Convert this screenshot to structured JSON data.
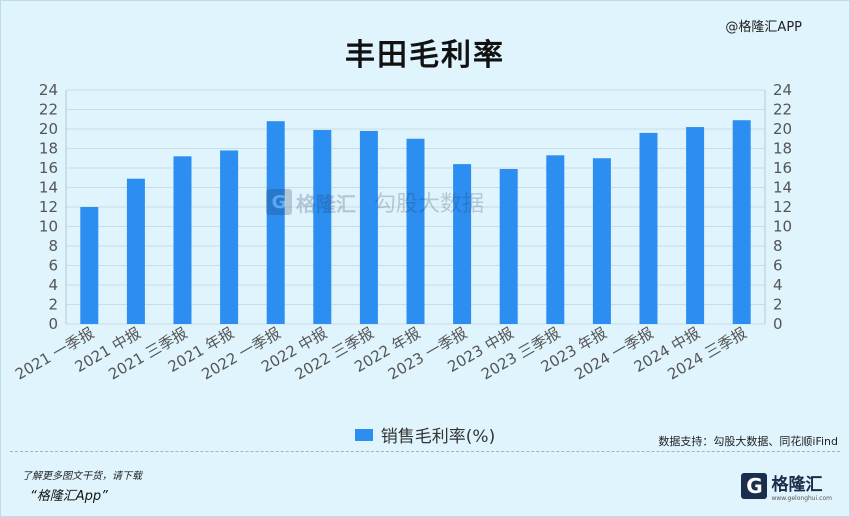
{
  "header": {
    "watermark_text": "@格隆汇APP"
  },
  "chart_data": {
    "type": "bar",
    "title": "丰田毛利率",
    "categories": [
      "2021 一季报",
      "2021 中报",
      "2021 三季报",
      "2021 年报",
      "2022 一季报",
      "2022 中报",
      "2022 三季报",
      "2022 年报",
      "2023 一季报",
      "2023 中报",
      "2023 三季报",
      "2023 年报",
      "2024 一季报",
      "2024 中报",
      "2024 三季报"
    ],
    "series": [
      {
        "name": "销售毛利率(%)",
        "values": [
          12.0,
          14.9,
          17.2,
          17.8,
          20.8,
          19.9,
          19.8,
          19.0,
          16.4,
          15.9,
          17.3,
          17.0,
          19.6,
          20.2,
          20.9
        ],
        "color": "#2d8ef2"
      }
    ],
    "ylim": [
      0,
      24
    ],
    "yticks": [
      0,
      2,
      4,
      6,
      8,
      10,
      12,
      14,
      16,
      18,
      20,
      22,
      24
    ],
    "grid": true,
    "legend_position": "bottom-center"
  },
  "watermark": {
    "brand": "格隆汇",
    "text": "勾股大数据",
    "url": "www.gogudata.com",
    "logo_letter": "G"
  },
  "source": "数据支持：勾股大数据、同花顺iFind",
  "footer": {
    "note": "了解更多图文干货，请下载",
    "app_name": "“格隆汇App”",
    "logo_letter": "G",
    "logo_text": "格隆汇",
    "logo_sub": "www.gelonghui.com"
  }
}
